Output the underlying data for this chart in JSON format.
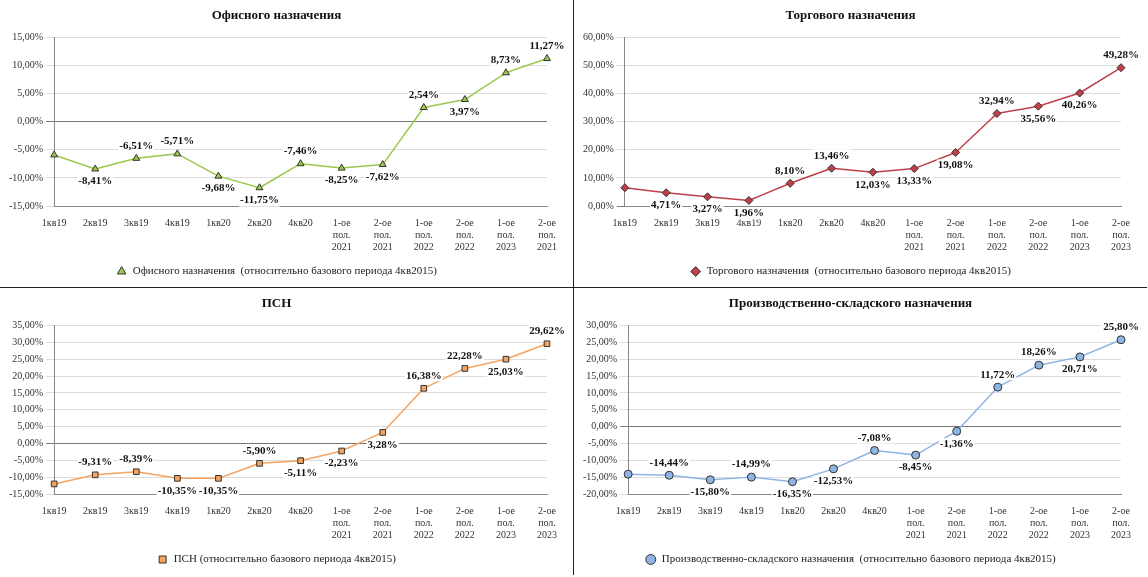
{
  "chart_data": [
    {
      "type": "line",
      "title": "Офисного назначения",
      "categories": [
        "1кв19",
        "2кв19",
        "3кв19",
        "4кв19",
        "1кв20",
        "2кв20",
        "4кв20",
        "1-ое\nпол.\n2021",
        "2-ое\nпол.\n2021",
        "1-ое\nпол.\n2022",
        "2-ое\nпол.\n2022",
        "1-ое\nпол.\n2023",
        "2-ое\nпол.\n2021"
      ],
      "series": [
        {
          "name": "Офисного назначения  (относительно базового периода 4кв2015)",
          "color": "#9bc84e",
          "values": [
            -5.9,
            -8.41,
            -6.51,
            -5.71,
            -9.68,
            -11.75,
            -7.46,
            -8.25,
            -7.62,
            2.54,
            3.97,
            8.73,
            11.27
          ],
          "value_labels": [
            null,
            "-8,41%",
            "-6,51%",
            "-5,71%",
            "-9,68%",
            "-11,75%",
            "-7,46%",
            "-8,25%",
            "-7,62%",
            "2,54%",
            "3,97%",
            "8,73%",
            "11,27%"
          ]
        }
      ],
      "marker": "triangle",
      "legend": "bottom",
      "grid": "y",
      "ylim": [
        -15,
        15
      ],
      "yticks": [
        {
          "value": -15,
          "label": "-15,00%"
        },
        {
          "value": -10,
          "label": "-10,00%"
        },
        {
          "value": -5,
          "label": "-5,00%"
        },
        {
          "value": 0,
          "label": "0,00%"
        },
        {
          "value": 5,
          "label": "5,00%"
        },
        {
          "value": 10,
          "label": "10,00%"
        },
        {
          "value": 15,
          "label": "15,00%"
        }
      ]
    },
    {
      "type": "line",
      "title": "Торгового назначения",
      "categories": [
        "1кв19",
        "2кв19",
        "3кв19",
        "4кв19",
        "1кв20",
        "2кв20",
        "4кв20",
        "1-ое\nпол.\n2021",
        "2-ое\nпол.\n2021",
        "1-ое\nпол.\n2022",
        "2-ое\nпол.\n2022",
        "1-ое\nпол.\n2023",
        "2-ое\nпол.\n2023"
      ],
      "series": [
        {
          "name": "Торгового назначения  (относительно базового периода 4кв2015)",
          "color": "#c0404a",
          "values": [
            6.5,
            4.71,
            3.27,
            1.96,
            8.1,
            13.46,
            12.03,
            13.33,
            19.08,
            32.94,
            35.56,
            40.26,
            49.28
          ],
          "value_labels": [
            null,
            "4,71%",
            "3,27%",
            "1,96%",
            "8,10%",
            "13,46%",
            "12,03%",
            "13,33%",
            "19,08%",
            "32,94%",
            "35,56%",
            "40,26%",
            "49,28%"
          ]
        }
      ],
      "marker": "diamond",
      "legend": "bottom",
      "grid": "y",
      "ylim": [
        0,
        60
      ],
      "yticks": [
        {
          "value": 0,
          "label": "0,00%"
        },
        {
          "value": 10,
          "label": "10,00%"
        },
        {
          "value": 20,
          "label": "20,00%"
        },
        {
          "value": 30,
          "label": "30,00%"
        },
        {
          "value": 40,
          "label": "40,00%"
        },
        {
          "value": 50,
          "label": "50,00%"
        },
        {
          "value": 60,
          "label": "60,00%"
        }
      ]
    },
    {
      "type": "line",
      "title": "ПСН",
      "categories": [
        "1кв19",
        "2кв19",
        "3кв19",
        "4кв19",
        "1кв20",
        "2кв20",
        "4кв20",
        "1-ое\nпол.\n2021",
        "2-ое\nпол.\n2021",
        "1-ое\nпол.\n2022",
        "2-ое\nпол.\n2022",
        "1-ое\nпол.\n2023",
        "2-ое\nпол.\n2023"
      ],
      "series": [
        {
          "name": "ПСН (относительно базового периода 4кв2015)",
          "color": "#f4a460",
          "values": [
            -12,
            -9.31,
            -8.39,
            -10.35,
            -10.35,
            -5.9,
            -5.11,
            -2.23,
            3.28,
            16.38,
            22.28,
            25.03,
            29.62
          ],
          "value_labels": [
            null,
            "-9,31%",
            "-8,39%",
            "-10,35%",
            "-10,35%",
            "-5,90%",
            "-5,11%",
            "-2,23%",
            "3,28%",
            "16,38%",
            "22,28%",
            "25,03%",
            "29,62%"
          ]
        }
      ],
      "marker": "square",
      "legend": "bottom",
      "grid": "y",
      "ylim": [
        -15,
        35
      ],
      "yticks": [
        {
          "value": -15,
          "label": "-15,00%"
        },
        {
          "value": -10,
          "label": "-10,00%"
        },
        {
          "value": -5,
          "label": "-5,00%"
        },
        {
          "value": 0,
          "label": "0,00%"
        },
        {
          "value": 5,
          "label": "5,00%"
        },
        {
          "value": 10,
          "label": "10,00%"
        },
        {
          "value": 15,
          "label": "15,00%"
        },
        {
          "value": 20,
          "label": "20,00%"
        },
        {
          "value": 25,
          "label": "25,00%"
        },
        {
          "value": 30,
          "label": "30,00%"
        },
        {
          "value": 35,
          "label": "35,00%"
        }
      ]
    },
    {
      "type": "line",
      "title": "Производственно-складского назначения",
      "categories": [
        "1кв19",
        "2кв19",
        "3кв19",
        "4кв19",
        "1кв20",
        "2кв20",
        "4кв20",
        "1-ое\nпол.\n2021",
        "2-ое\nпол.\n2021",
        "1-ое\nпол.\n2022",
        "2-ое\nпол.\n2022",
        "1-ое\nпол.\n2023",
        "2-ое\nпол.\n2023"
      ],
      "series": [
        {
          "name": "Производственно-складского назначения  (относительно базового периода 4кв2015)",
          "color": "#8eb4e3",
          "values": [
            -14.1,
            -14.44,
            -15.8,
            -14.99,
            -16.35,
            -12.53,
            -7.08,
            -8.45,
            -1.36,
            11.72,
            18.26,
            20.71,
            25.8
          ],
          "value_labels": [
            null,
            "-14,44%",
            "-15,80%",
            "-14,99%",
            "-16,35%",
            "-12,53%",
            "-7,08%",
            "-8,45%",
            "-1,36%",
            "11,72%",
            "18,26%",
            "20,71%",
            "25,80%"
          ]
        }
      ],
      "marker": "circle",
      "legend": "bottom",
      "grid": "y",
      "ylim": [
        -20,
        30
      ],
      "yticks": [
        {
          "value": -20,
          "label": "-20,00%"
        },
        {
          "value": -15,
          "label": "-15,00%"
        },
        {
          "value": -10,
          "label": "-10,00%"
        },
        {
          "value": -5,
          "label": "-5,00%"
        },
        {
          "value": 0,
          "label": "0,00%"
        },
        {
          "value": 5,
          "label": "5,00%"
        },
        {
          "value": 10,
          "label": "10,00%"
        },
        {
          "value": 15,
          "label": "15,00%"
        },
        {
          "value": 20,
          "label": "20,00%"
        },
        {
          "value": 25,
          "label": "25,00%"
        },
        {
          "value": 30,
          "label": "30,00%"
        }
      ]
    }
  ]
}
